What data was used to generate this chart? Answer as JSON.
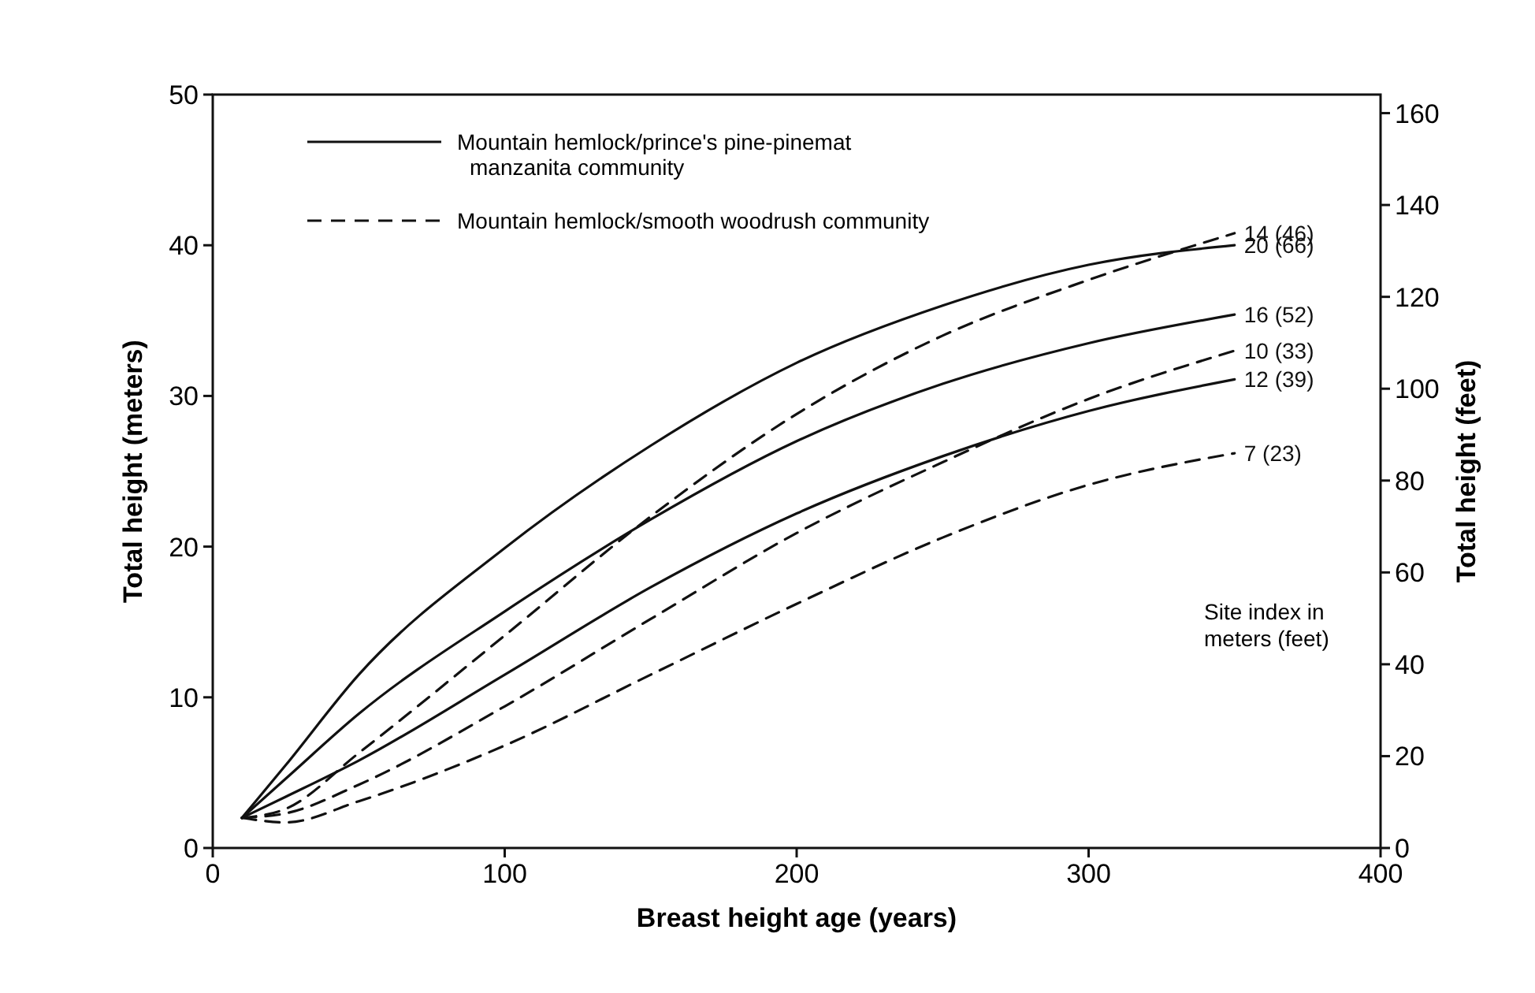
{
  "chart_data": {
    "type": "line",
    "xlabel": "Breast height age (years)",
    "ylabel": "Total height (meters)",
    "y2label": "Total height (feet)",
    "xlim": [
      0,
      400
    ],
    "xticks": [
      0,
      100,
      200,
      300,
      400
    ],
    "ylim": [
      0,
      50
    ],
    "yticks": [
      0,
      10,
      20,
      30,
      40,
      50
    ],
    "y2lim": [
      0,
      164.04
    ],
    "y2ticks": [
      0,
      20,
      40,
      60,
      80,
      100,
      120,
      140,
      160
    ],
    "x": [
      10,
      25,
      50,
      100,
      150,
      200,
      250,
      300,
      350
    ],
    "grid": false,
    "marker": "none",
    "annotations": [
      "Mountain hemlock/prince's pine-pinemat manzanita community",
      "Mountain hemlock/smooth woodrush community",
      "Site index in meters (feet)"
    ],
    "series": [
      {
        "name": "20 (66)",
        "color": "#111111",
        "line_style": "solid",
        "values": [
          2,
          5.5,
          11.5,
          19.9,
          26.7,
          32.2,
          36,
          38.7,
          40
        ]
      },
      {
        "name": "16 (52)",
        "color": "#111111",
        "line_style": "solid",
        "values": [
          2,
          4.6,
          8.9,
          15.7,
          21.8,
          27,
          30.8,
          33.5,
          35.4
        ]
      },
      {
        "name": "12 (39)",
        "color": "#111111",
        "line_style": "solid",
        "values": [
          2,
          3.4,
          5.8,
          11.5,
          17.3,
          22.2,
          26,
          29,
          31.1
        ]
      },
      {
        "name": "14 (46)",
        "color": "#111111",
        "line_style": "dashed",
        "values": [
          2,
          2.6,
          6.3,
          14.1,
          22,
          28.8,
          34,
          37.7,
          40.8
        ]
      },
      {
        "name": "10 (33)",
        "color": "#111111",
        "line_style": "dashed",
        "values": [
          2,
          2.3,
          4.2,
          9.4,
          15.2,
          20.9,
          25.6,
          29.8,
          33
        ]
      },
      {
        "name": "7 (23)",
        "color": "#111111",
        "line_style": "dashed",
        "values": [
          2,
          1.7,
          3.1,
          6.8,
          11.5,
          16.2,
          20.6,
          24.1,
          26.2
        ]
      }
    ]
  }
}
